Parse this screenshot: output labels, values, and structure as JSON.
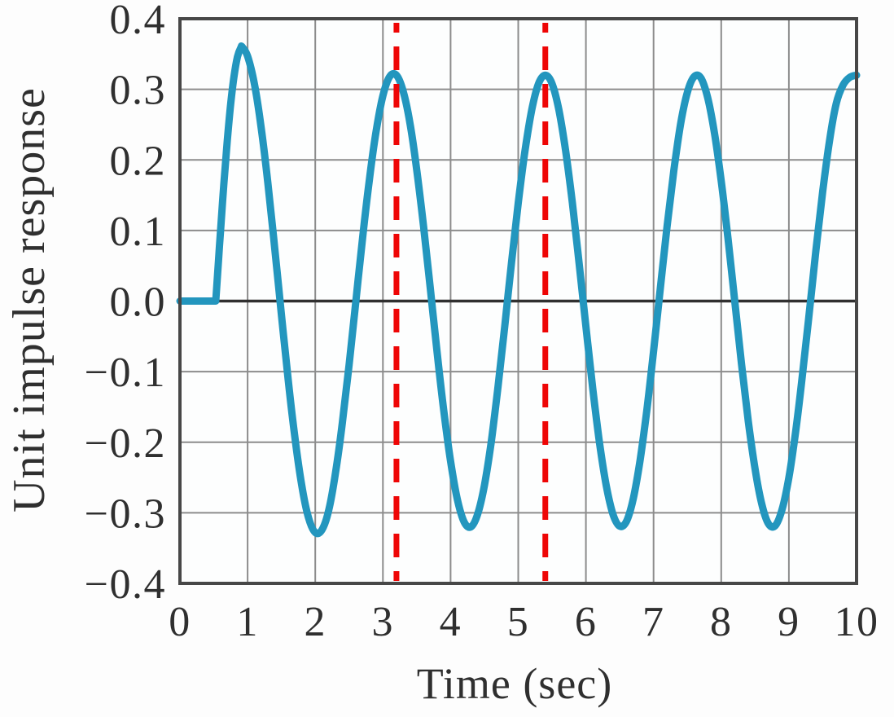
{
  "figure": {
    "background": "#fdfdfd"
  },
  "chart_data": {
    "type": "line",
    "title": "",
    "xlabel": "Time (sec)",
    "ylabel": "Unit impulse response",
    "xlim": [
      0,
      10
    ],
    "ylim": [
      -0.4,
      0.4
    ],
    "x_ticks": [
      0,
      1,
      2,
      3,
      4,
      5,
      6,
      7,
      8,
      9,
      10
    ],
    "y_ticks": [
      0.4,
      0.3,
      0.2,
      0.1,
      0.0,
      -0.1,
      -0.2,
      -0.3,
      -0.4
    ],
    "y_tick_labels": [
      "0.4",
      "0.3",
      "0.2",
      "0.1",
      "0.0",
      "−0.1",
      "−0.2",
      "−0.3",
      "−0.4"
    ],
    "grid": true,
    "legend": null,
    "colors": {
      "curve": "#2396be",
      "grid": "#8c8c8c",
      "frame": "#474747",
      "zero_line": "#303030",
      "marker": "#ee0606",
      "text": "#2f2f2f"
    },
    "annotations": {
      "vertical_dashed_lines": [
        {
          "x": 3.2,
          "color": "#ee0606",
          "style": "dashed"
        },
        {
          "x": 5.4,
          "color": "#ee0606",
          "style": "dashed"
        }
      ]
    },
    "features": {
      "step_start_t": 0.53,
      "first_peak": {
        "t": 0.92,
        "y": 0.36
      },
      "steady_peak_y": 0.32,
      "steady_trough_y": -0.325,
      "approx_period_sec": 2.2
    },
    "series": [
      {
        "name": "unit-impulse-response",
        "color": "#2396be",
        "points": [
          [
            0,
            0
          ],
          [
            0.3,
            0
          ],
          [
            0.53,
            0
          ],
          [
            0.57,
            0.058
          ],
          [
            0.6,
            0.1
          ],
          [
            0.65,
            0.167
          ],
          [
            0.7,
            0.228
          ],
          [
            0.75,
            0.279
          ],
          [
            0.8,
            0.319
          ],
          [
            0.85,
            0.346
          ],
          [
            0.9,
            0.359
          ],
          [
            0.92,
            0.36
          ],
          [
            1,
            0.347
          ],
          [
            1.1,
            0.308
          ],
          [
            1.2,
            0.246
          ],
          [
            1.3,
            0.167
          ],
          [
            1.4,
            0.076
          ],
          [
            1.5,
            -0.019
          ],
          [
            1.6,
            -0.112
          ],
          [
            1.7,
            -0.194
          ],
          [
            1.8,
            -0.261
          ],
          [
            1.9,
            -0.307
          ],
          [
            2,
            -0.328
          ],
          [
            2.1,
            -0.324
          ],
          [
            2.2,
            -0.296
          ],
          [
            2.3,
            -0.243
          ],
          [
            2.4,
            -0.173
          ],
          [
            2.5,
            -0.09
          ],
          [
            2.6,
            0
          ],
          [
            2.7,
            0.09
          ],
          [
            2.8,
            0.172
          ],
          [
            2.9,
            0.241
          ],
          [
            3,
            0.291
          ],
          [
            3.1,
            0.318
          ],
          [
            3.2,
            0.32
          ],
          [
            3.3,
            0.297
          ],
          [
            3.4,
            0.252
          ],
          [
            3.5,
            0.186
          ],
          [
            3.6,
            0.106
          ],
          [
            3.7,
            0.018
          ],
          [
            3.8,
            -0.072
          ],
          [
            3.9,
            -0.156
          ],
          [
            4,
            -0.227
          ],
          [
            4.1,
            -0.281
          ],
          [
            4.2,
            -0.313
          ],
          [
            4.3,
            -0.32
          ],
          [
            4.4,
            -0.302
          ],
          [
            4.5,
            -0.261
          ],
          [
            4.6,
            -0.2
          ],
          [
            4.7,
            -0.122
          ],
          [
            4.8,
            -0.036
          ],
          [
            4.9,
            0.054
          ],
          [
            5,
            0.139
          ],
          [
            5.1,
            0.213
          ],
          [
            5.2,
            0.271
          ],
          [
            5.3,
            0.308
          ],
          [
            5.4,
            0.32
          ],
          [
            5.5,
            0.308
          ],
          [
            5.6,
            0.271
          ],
          [
            5.7,
            0.213
          ],
          [
            5.8,
            0.139
          ],
          [
            5.9,
            0.053
          ],
          [
            6,
            -0.036
          ],
          [
            6.1,
            -0.123
          ],
          [
            6.2,
            -0.2
          ],
          [
            6.3,
            -0.261
          ],
          [
            6.4,
            -0.302
          ],
          [
            6.5,
            -0.319
          ],
          [
            6.6,
            -0.312
          ],
          [
            6.7,
            -0.28
          ],
          [
            6.8,
            -0.226
          ],
          [
            6.9,
            -0.155
          ],
          [
            7,
            -0.071
          ],
          [
            7.1,
            0.018
          ],
          [
            7.2,
            0.106
          ],
          [
            7.3,
            0.185
          ],
          [
            7.4,
            0.251
          ],
          [
            7.5,
            0.296
          ],
          [
            7.6,
            0.318
          ],
          [
            7.7,
            0.316
          ],
          [
            7.8,
            0.288
          ],
          [
            7.9,
            0.238
          ],
          [
            8,
            0.17
          ],
          [
            8.1,
            0.089
          ],
          [
            8.2,
            0
          ],
          [
            8.3,
            -0.089
          ],
          [
            8.4,
            -0.17
          ],
          [
            8.5,
            -0.238
          ],
          [
            8.6,
            -0.288
          ],
          [
            8.7,
            -0.316
          ],
          [
            8.8,
            -0.318
          ],
          [
            8.9,
            -0.295
          ],
          [
            9,
            -0.25
          ],
          [
            9.1,
            -0.185
          ],
          [
            9.2,
            -0.105
          ],
          [
            9.3,
            -0.018
          ],
          [
            9.4,
            0.072
          ],
          [
            9.5,
            0.155
          ],
          [
            9.6,
            0.227
          ],
          [
            9.7,
            0.28
          ],
          [
            9.8,
            0.306
          ],
          [
            9.9,
            0.317
          ],
          [
            10,
            0.32
          ]
        ]
      }
    ]
  }
}
